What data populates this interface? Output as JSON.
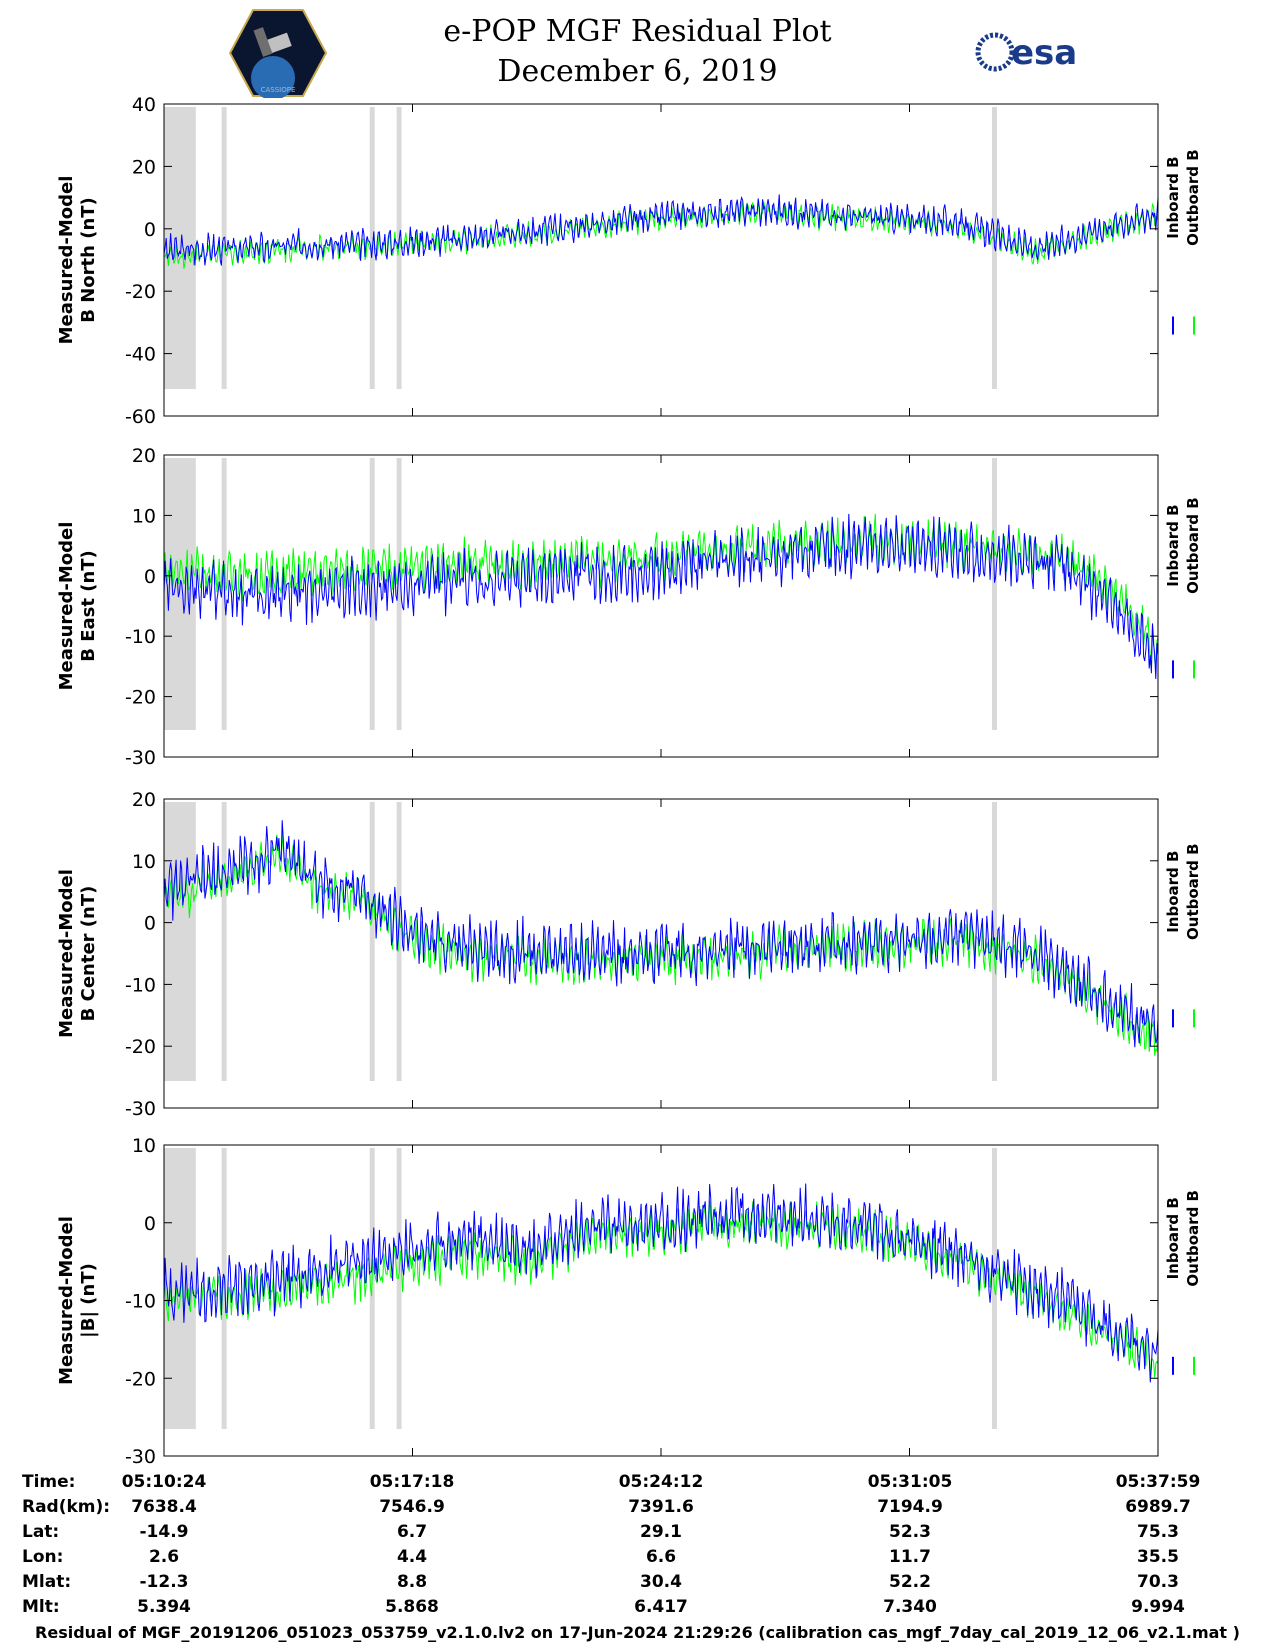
{
  "header": {
    "title_line1": "e-POP MGF Residual Plot",
    "title_line2": "December 6, 2019",
    "logo_left_text": "CASSIOPE",
    "logo_right_text": "esa"
  },
  "colors": {
    "inboard": "#0000ff",
    "outboard": "#00ff00",
    "gap": "#d9d9d9"
  },
  "chart_data": [
    {
      "type": "line",
      "ylabel_line1": "Measured-Model",
      "ylabel_line2": "B North (nT)",
      "ylim": [
        -60,
        40
      ],
      "yticks": [
        -60,
        -40,
        -20,
        0,
        20,
        40
      ],
      "series": [
        {
          "name": "Inboard B",
          "x": [
            0,
            0.1,
            0.14,
            0.2,
            0.3,
            0.42,
            0.5,
            0.6,
            0.7,
            0.8,
            0.88,
            0.94,
            1.0
          ],
          "values": [
            -7,
            -6,
            -5,
            -5,
            -3,
            1,
            4,
            6,
            4,
            2,
            -7,
            0,
            5
          ]
        },
        {
          "name": "Outboard B",
          "x": [
            0,
            0.1,
            0.14,
            0.2,
            0.3,
            0.42,
            0.5,
            0.6,
            0.7,
            0.8,
            0.88,
            0.94,
            1.0
          ],
          "values": [
            -9,
            -7,
            -6,
            -6,
            -4,
            0,
            3,
            5,
            3,
            1,
            -8,
            -1,
            4
          ]
        }
      ],
      "legend": [
        "Inboard B",
        "Outboard B"
      ],
      "legend_position": "right"
    },
    {
      "type": "line",
      "ylabel_line1": "Measured-Model",
      "ylabel_line2": "B East (nT)",
      "ylim": [
        -30,
        20
      ],
      "yticks": [
        -30,
        -20,
        -10,
        0,
        10,
        20
      ],
      "series": [
        {
          "name": "Inboard B",
          "x": [
            0,
            0.1,
            0.2,
            0.3,
            0.4,
            0.5,
            0.6,
            0.7,
            0.8,
            0.9,
            0.95,
            1.0
          ],
          "values": [
            -2,
            -3,
            -2,
            -1,
            0,
            1,
            3,
            5,
            4,
            2,
            -4,
            -14
          ]
        },
        {
          "name": "Outboard B",
          "x": [
            0,
            0.1,
            0.2,
            0.3,
            0.4,
            0.5,
            0.6,
            0.7,
            0.8,
            0.9,
            0.95,
            1.0
          ],
          "values": [
            1,
            0,
            1,
            2,
            2,
            3,
            5,
            6,
            5,
            3,
            -2,
            -12
          ]
        }
      ],
      "legend": [
        "Inboard B",
        "Outboard B"
      ],
      "legend_position": "right"
    },
    {
      "type": "line",
      "ylabel_line1": "Measured-Model",
      "ylabel_line2": "B Center (nT)",
      "ylim": [
        -30,
        20
      ],
      "yticks": [
        -30,
        -20,
        -10,
        0,
        10,
        20
      ],
      "series": [
        {
          "name": "Inboard B",
          "x": [
            0,
            0.06,
            0.12,
            0.16,
            0.2,
            0.25,
            0.3,
            0.4,
            0.5,
            0.6,
            0.7,
            0.8,
            0.88,
            1.0
          ],
          "values": [
            5,
            8,
            12,
            6,
            5,
            -2,
            -4,
            -5,
            -5,
            -4,
            -3,
            -2,
            -5,
            -18
          ]
        },
        {
          "name": "Outboard B",
          "x": [
            0,
            0.06,
            0.12,
            0.16,
            0.2,
            0.25,
            0.3,
            0.4,
            0.5,
            0.6,
            0.7,
            0.8,
            0.88,
            1.0
          ],
          "values": [
            4,
            7,
            11,
            5,
            4,
            -3,
            -5,
            -6,
            -6,
            -5,
            -4,
            -3,
            -6,
            -19
          ]
        }
      ],
      "legend": [
        "Inboard B",
        "Outboard B"
      ],
      "legend_position": "right"
    },
    {
      "type": "line",
      "ylabel_line1": "Measured-Model",
      "ylabel_line2": "|B| (nT)",
      "ylim": [
        -30,
        10
      ],
      "yticks": [
        -30,
        -20,
        -10,
        0,
        10
      ],
      "series": [
        {
          "name": "Inboard B",
          "x": [
            0,
            0.1,
            0.2,
            0.27,
            0.3,
            0.38,
            0.42,
            0.5,
            0.6,
            0.7,
            0.8,
            0.9,
            1.0
          ],
          "values": [
            -9,
            -8,
            -5,
            -3,
            -2,
            -3,
            -1,
            0,
            1,
            0,
            -4,
            -10,
            -17
          ]
        },
        {
          "name": "Outboard B",
          "x": [
            0,
            0.1,
            0.2,
            0.27,
            0.3,
            0.38,
            0.42,
            0.5,
            0.6,
            0.7,
            0.8,
            0.9,
            1.0
          ],
          "values": [
            -10,
            -9,
            -7,
            -5,
            -4,
            -5,
            -2,
            -1,
            0,
            -1,
            -5,
            -11,
            -18
          ]
        }
      ],
      "legend": [
        "Inboard B",
        "Outboard B"
      ],
      "legend_position": "right"
    }
  ],
  "info_table": {
    "labels": [
      "Time:",
      "Rad(km):",
      "Lat:",
      "Lon:",
      "Mlat:",
      "Mlt:"
    ],
    "columns": [
      [
        "05:10:24",
        "7638.4",
        "-14.9",
        "2.6",
        "-12.3",
        "5.394"
      ],
      [
        "05:17:18",
        "7546.9",
        "6.7",
        "4.4",
        "8.8",
        "5.868"
      ],
      [
        "05:24:12",
        "7391.6",
        "29.1",
        "6.6",
        "30.4",
        "6.417"
      ],
      [
        "05:31:05",
        "7194.9",
        "52.3",
        "11.7",
        "52.2",
        "7.340"
      ],
      [
        "05:37:59",
        "6989.7",
        "75.3",
        "35.5",
        "70.3",
        "9.994"
      ]
    ]
  },
  "footer": "Residual of MGF_20191206_051023_053759_v2.1.0.lv2 on 17-Jun-2024 21:29:26 (calibration cas_mgf_7day_cal_2019_12_06_v2.1.mat )"
}
